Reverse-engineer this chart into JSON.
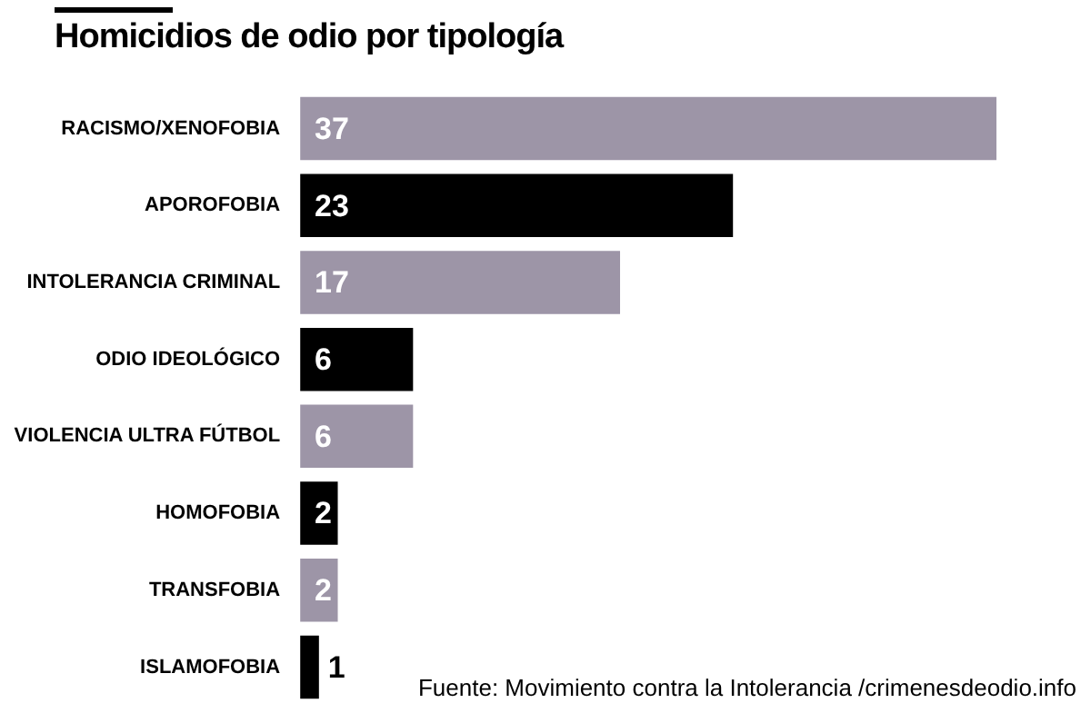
{
  "chart_data": {
    "type": "bar",
    "orientation": "horizontal",
    "title": "Homicidios de odio por tipología",
    "categories": [
      "RACISMO/XENOFOBIA",
      "APOROFOBIA",
      "INTOLERANCIA CRIMINAL",
      "ODIO IDEOLÓGICO",
      "VIOLENCIA ULTRA FÚTBOL",
      "HOMOFOBIA",
      "TRANSFOBIA",
      "ISLAMOFOBIA"
    ],
    "values": [
      37,
      23,
      17,
      6,
      6,
      2,
      2,
      1
    ],
    "colors": [
      "#9d95a7",
      "#000000",
      "#9d95a7",
      "#000000",
      "#9d95a7",
      "#000000",
      "#9d95a7",
      "#000000"
    ],
    "data_labels": true,
    "legend": false,
    "annotations": [
      "Fuente: Movimiento contra la Intolerancia /crimenesdeodio.info"
    ]
  }
}
